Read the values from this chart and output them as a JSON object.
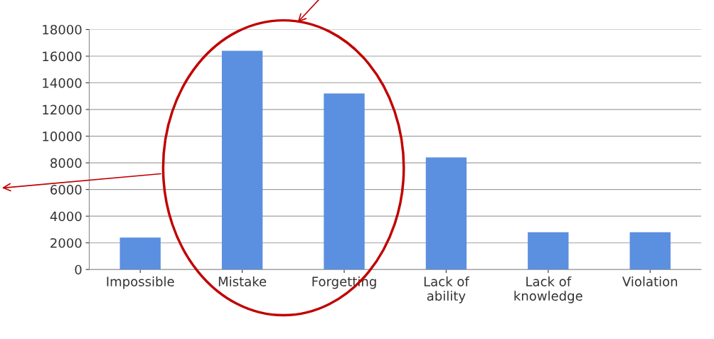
{
  "chart_data": {
    "type": "bar",
    "categories": [
      "Impossible",
      "Mistake",
      "Forgetting",
      "Lack of\nability",
      "Lack of\nknowledge",
      "Violation"
    ],
    "values": [
      2400,
      16400,
      13200,
      8400,
      2800,
      2800
    ],
    "color": "#5b8fdf",
    "ylim": [
      0,
      18000
    ],
    "yticks": [
      0,
      2000,
      4000,
      6000,
      8000,
      10000,
      12000,
      14000,
      16000,
      18000
    ],
    "grid": "y"
  }
}
